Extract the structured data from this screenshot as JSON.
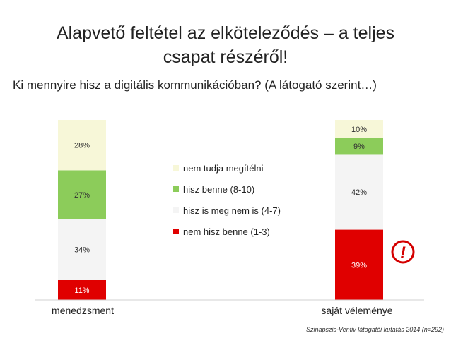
{
  "slide": {
    "title": "Alapvető feltétel az elköteleződés – a teljes csapat részéről!",
    "subtitle": "Ki mennyire hisz a digitális kommunikációban? (A látogató szerint…)",
    "source": "Szinapszis-Ventiv látogatói kutatás 2014 (n=292)",
    "alert_symbol": "!"
  },
  "colors": {
    "nem_hisz": "#e00000",
    "semleges": "#f4f4f4",
    "hisz": "#8ccc5a",
    "nem_tudja": "#f7f7d8",
    "alert": "#d40000"
  },
  "chart_data": {
    "type": "bar",
    "stacked": true,
    "categories": [
      "menedzsment",
      "saját véleménye"
    ],
    "series": [
      {
        "name": "nem hisz benne (1-3)",
        "values": [
          11,
          39
        ],
        "labels": [
          "11%",
          "39%"
        ],
        "color": "#e00000"
      },
      {
        "name": "hisz is meg nem is (4-7)",
        "values": [
          34,
          42
        ],
        "labels": [
          "34%",
          "42%"
        ],
        "color": "#f4f4f4"
      },
      {
        "name": "hisz benne (8-10)",
        "values": [
          27,
          9
        ],
        "labels": [
          "27%",
          "9%"
        ],
        "color": "#8ccc5a"
      },
      {
        "name": "nem tudja megítélni",
        "values": [
          28,
          10
        ],
        "labels": [
          "28%",
          "10%"
        ],
        "color": "#f7f7d8"
      }
    ],
    "legend_order": [
      3,
      2,
      1,
      0
    ],
    "ylim": [
      0,
      100
    ],
    "legend_position": "center",
    "grid": false
  }
}
